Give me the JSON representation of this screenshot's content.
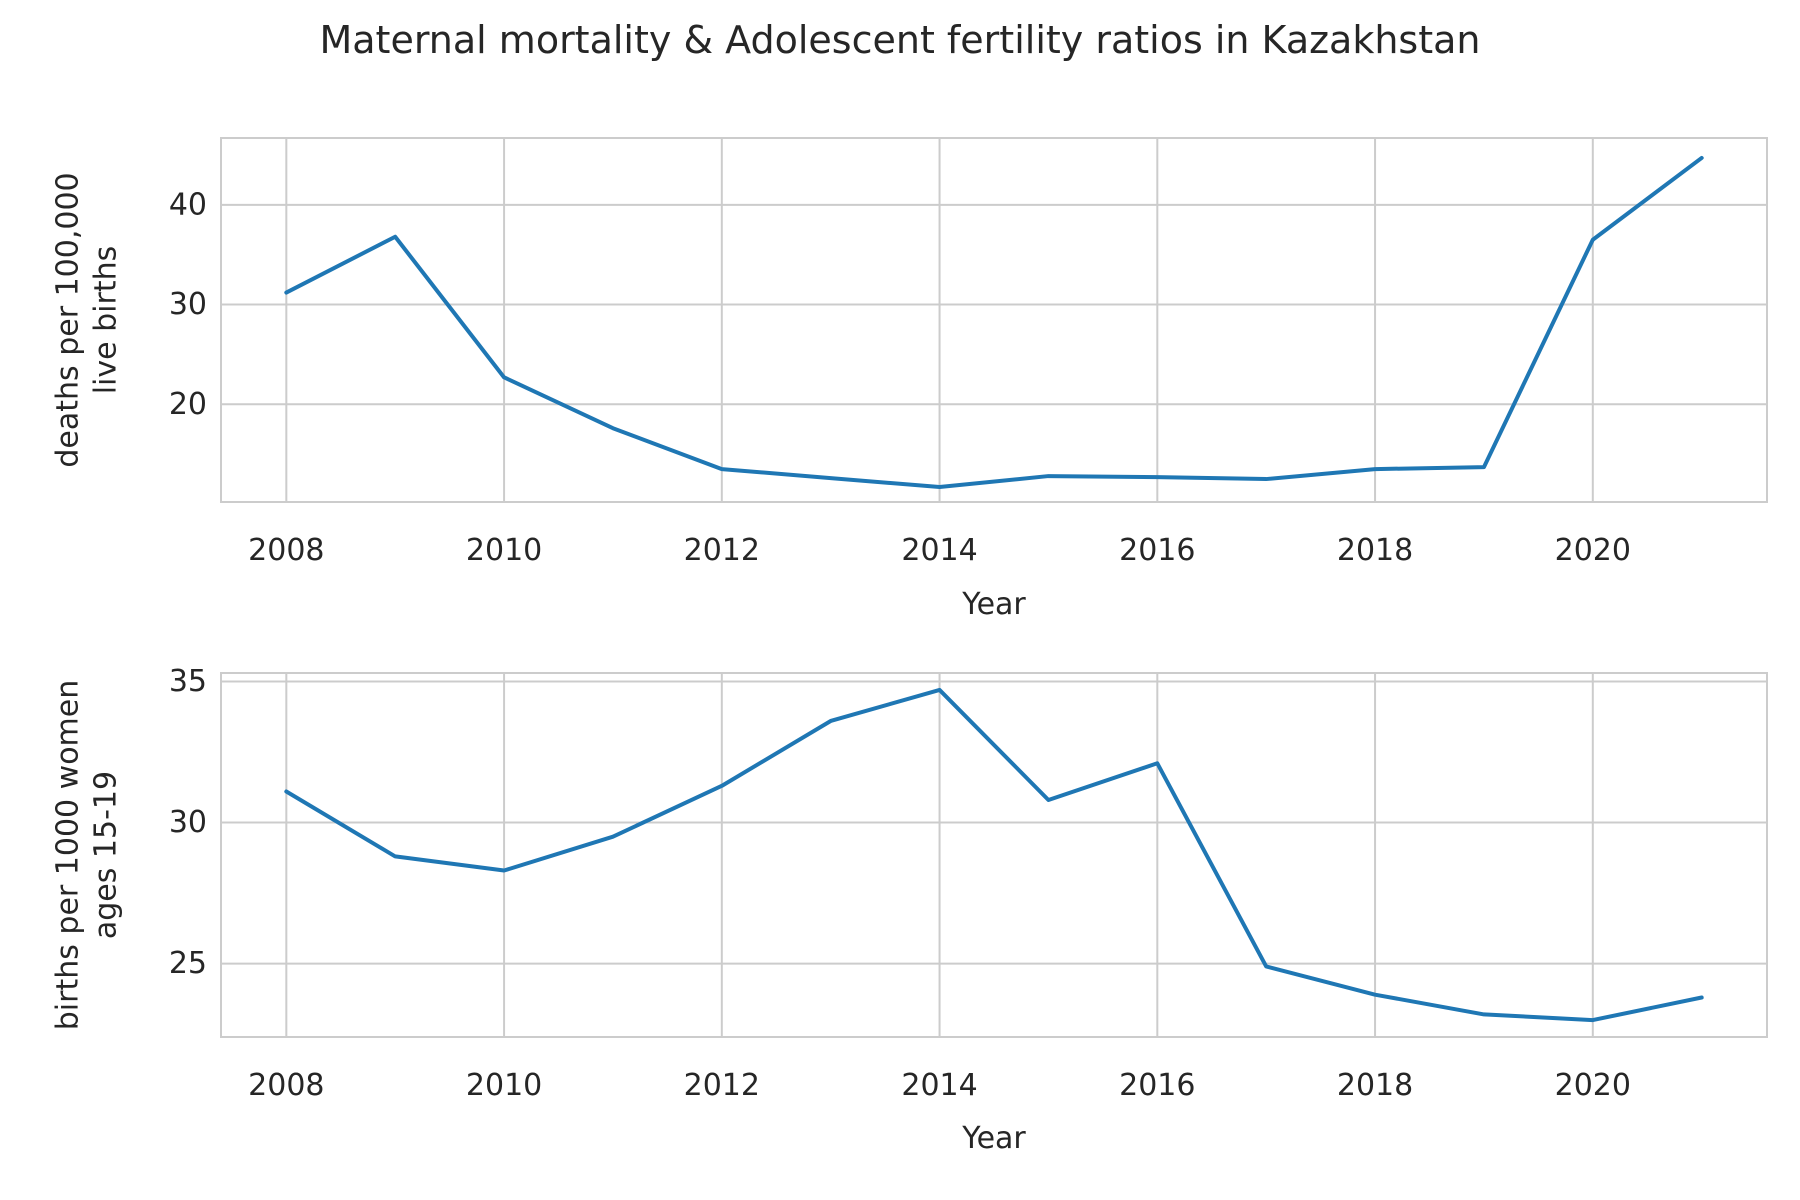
{
  "figure_title": "Maternal mortality & Adolescent fertility ratios in Kazakhstan",
  "line_color": "#1f77b4",
  "chart_data": [
    {
      "type": "line",
      "title": "",
      "xlabel": "Year",
      "ylabel": "deaths per 100,000 live births",
      "ylabel_lines": [
        "deaths per 100,000",
        "live births"
      ],
      "grid": true,
      "xlim": [
        2007.4,
        2021.6
      ],
      "ylim": [
        10.2,
        46.7
      ],
      "xticks": [
        2008,
        2010,
        2012,
        2014,
        2016,
        2018,
        2020
      ],
      "yticks": [
        20,
        30,
        40
      ],
      "series": [
        {
          "x": [
            2008,
            2009,
            2010,
            2011,
            2012,
            2013,
            2014,
            2015,
            2016,
            2017,
            2018,
            2019,
            2020,
            2021
          ],
          "values": [
            31.2,
            36.8,
            22.7,
            17.6,
            13.5,
            12.6,
            11.7,
            12.8,
            12.7,
            12.5,
            13.5,
            13.7,
            36.5,
            44.7
          ]
        }
      ]
    },
    {
      "type": "line",
      "title": "",
      "xlabel": "Year",
      "ylabel": "births per 1000 women ages 15-19",
      "ylabel_lines": [
        "births per 1000 women",
        "ages 15-19"
      ],
      "grid": true,
      "xlim": [
        2007.4,
        2021.6
      ],
      "ylim": [
        22.4,
        35.3
      ],
      "xticks": [
        2008,
        2010,
        2012,
        2014,
        2016,
        2018,
        2020
      ],
      "yticks": [
        25,
        30,
        35
      ],
      "series": [
        {
          "x": [
            2008,
            2009,
            2010,
            2011,
            2012,
            2013,
            2014,
            2015,
            2016,
            2017,
            2018,
            2019,
            2020,
            2021
          ],
          "values": [
            31.1,
            28.8,
            28.3,
            29.5,
            31.3,
            33.6,
            34.7,
            30.8,
            32.1,
            24.9,
            23.9,
            23.2,
            23.0,
            23.8
          ]
        }
      ]
    }
  ]
}
